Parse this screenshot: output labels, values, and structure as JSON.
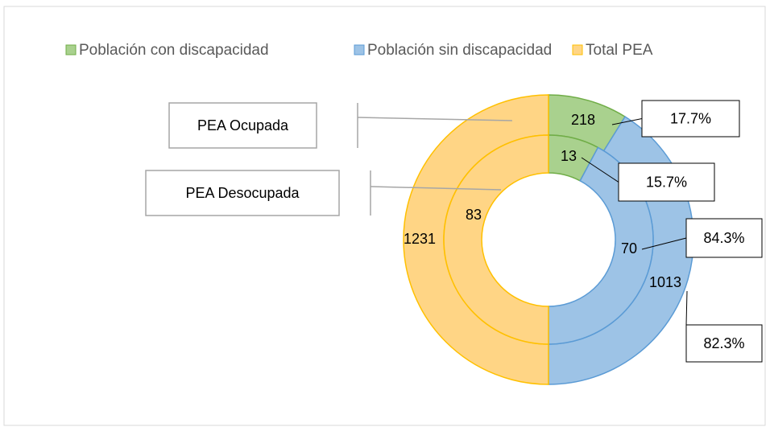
{
  "chart_data": {
    "type": "doughnut",
    "categories": [
      "Población con discapacidad",
      "Población sin discapacidad",
      "Total PEA"
    ],
    "colors": [
      "#a9d18e",
      "#9dc3e6",
      "#ffd585"
    ],
    "edge_colors": [
      "#70ad47",
      "#5b9bd5",
      "#ffc000"
    ],
    "legend": "top",
    "series": [
      {
        "name": "PEA Ocupada",
        "values": [
          218,
          1013,
          1231
        ],
        "percent_labels": [
          "17.7%",
          "82.3%"
        ]
      },
      {
        "name": "PEA Desocupada",
        "values": [
          13,
          70,
          83
        ],
        "percent_labels": [
          "15.7%",
          "84.3%"
        ]
      }
    ]
  }
}
